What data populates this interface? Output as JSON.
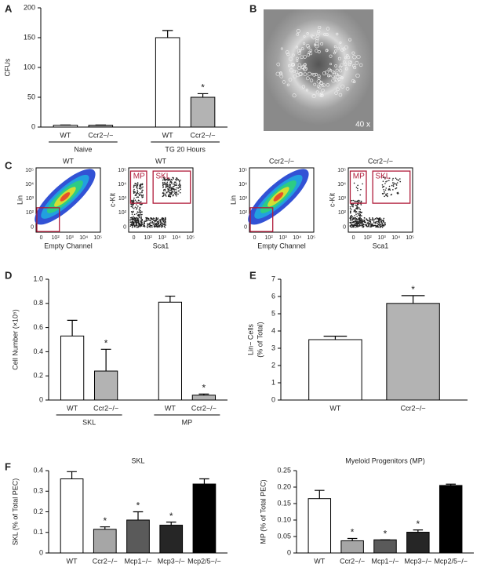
{
  "chart_data": [
    {
      "type": "bar",
      "panel": "A",
      "ylabel": "CFUs",
      "categories": [
        "WT",
        "Ccr2−/−",
        "WT",
        "Ccr2−/−"
      ],
      "group_labels": [
        "Naive",
        "TG 20 Hours"
      ],
      "values": [
        3,
        3,
        150,
        50
      ],
      "errors": [
        0.5,
        0.5,
        12,
        6
      ],
      "colors": [
        "#ffffff",
        "#b3b3b3",
        "#ffffff",
        "#b3b3b3"
      ],
      "significant": [
        false,
        false,
        false,
        true
      ],
      "significance_marker": "*",
      "ylim": [
        0,
        200
      ],
      "yticks": [
        0,
        50,
        100,
        150,
        200
      ]
    },
    {
      "type": "image",
      "panel": "B",
      "annotation": "40 x"
    },
    {
      "type": "flow",
      "panel": "C",
      "title": "WT",
      "xlabel": "Empty Channel",
      "ylabel": "Lin",
      "style": "density",
      "gates": [],
      "ticks": [
        "0",
        "10²",
        "10³",
        "10⁴",
        "10⁵"
      ]
    },
    {
      "type": "flow",
      "title": "WT",
      "xlabel": "Sca1",
      "ylabel": "c-Kit",
      "style": "dots",
      "gates": [
        "MP",
        "SKL"
      ],
      "ticks": [
        "0",
        "10²",
        "10³",
        "10⁴",
        "10⁵"
      ]
    },
    {
      "type": "flow",
      "title": "Ccr2−/−",
      "xlabel": "Empty Channel",
      "ylabel": "Lin",
      "style": "density",
      "gates": [],
      "ticks": [
        "0",
        "10²",
        "10³",
        "10⁴",
        "10⁵"
      ]
    },
    {
      "type": "flow",
      "title": "Ccr2−/−",
      "xlabel": "Sca1",
      "ylabel": "c-Kit",
      "style": "dots",
      "gates": [
        "MP",
        "SKL"
      ],
      "ticks": [
        "0",
        "10²",
        "10³",
        "10⁴",
        "10⁵"
      ]
    },
    {
      "type": "bar",
      "panel": "D",
      "ylabel": "Cell Number (×10⁵)",
      "categories": [
        "WT",
        "Ccr2−/−",
        "WT",
        "Ccr2−/−"
      ],
      "group_labels": [
        "SKL",
        "MP"
      ],
      "values": [
        0.53,
        0.24,
        0.81,
        0.04
      ],
      "errors": [
        0.13,
        0.18,
        0.05,
        0.01
      ],
      "colors": [
        "#ffffff",
        "#b3b3b3",
        "#ffffff",
        "#b3b3b3"
      ],
      "significant": [
        false,
        true,
        false,
        true
      ],
      "significance_marker": "*",
      "ylim": [
        0,
        1
      ],
      "yticks": [
        0,
        0.2,
        0.4,
        0.6,
        0.8,
        {
          "value": 1,
          "label": "1.0"
        }
      ]
    },
    {
      "type": "bar",
      "panel": "E",
      "ylabel": [
        "Lin− Cells",
        "(% of Total)"
      ],
      "categories": [
        "WT",
        "Ccr2−/−"
      ],
      "values": [
        3.5,
        5.6
      ],
      "errors": [
        0.2,
        0.45
      ],
      "colors": [
        "#ffffff",
        "#b3b3b3"
      ],
      "significant": [
        false,
        true
      ],
      "significance_marker": "*",
      "ylim": [
        0,
        7
      ],
      "yticks": [
        0,
        1,
        2,
        3,
        4,
        5,
        6,
        7
      ]
    },
    {
      "type": "bar",
      "panel": "F",
      "title": "SKL",
      "ylabel": "SKL (% of Total PEC)",
      "categories": [
        "WT",
        "Ccr2−/−",
        "Mcp1−/−",
        "Mcp3−/−",
        "Mcp2/5−/−"
      ],
      "values": [
        0.36,
        0.115,
        0.16,
        0.135,
        0.335
      ],
      "errors": [
        0.035,
        0.012,
        0.04,
        0.015,
        0.025
      ],
      "colors": [
        "#ffffff",
        "#a6a6a6",
        "#5a5a5a",
        "#262626",
        "#000000"
      ],
      "significant": [
        false,
        true,
        true,
        true,
        false
      ],
      "significance_marker": "*",
      "ylim": [
        0,
        0.4
      ],
      "yticks": [
        0,
        0.1,
        0.2,
        0.3,
        0.4
      ]
    },
    {
      "type": "bar",
      "title": "Myeloid Progenitors (MP)",
      "ylabel": "MP (% of Total PEC)",
      "categories": [
        "WT",
        "Ccr2−/−",
        "Mcp1−/−",
        "Mcp3−/−",
        "Mcp2/5−/−"
      ],
      "values": [
        0.165,
        0.037,
        0.04,
        0.063,
        0.205
      ],
      "errors": [
        0.025,
        0.007,
        0,
        0.007,
        0.004
      ],
      "colors": [
        "#ffffff",
        "#a6a6a6",
        "#5a5a5a",
        "#262626",
        "#000000"
      ],
      "significant": [
        false,
        true,
        true,
        true,
        false
      ],
      "significance_marker": "*",
      "ylim": [
        0,
        0.25
      ],
      "yticks": [
        0,
        0.05,
        {
          "value": 0.1,
          "label": "0.10"
        },
        0.15,
        {
          "value": 0.2,
          "label": "0.20"
        },
        0.25
      ]
    }
  ]
}
